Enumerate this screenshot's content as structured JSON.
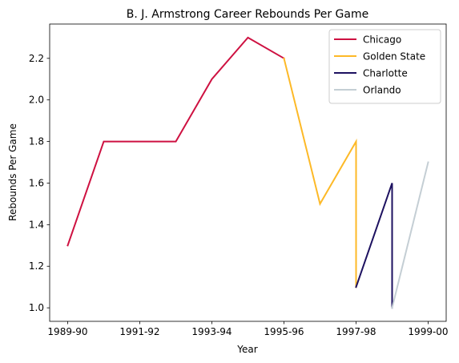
{
  "chart_data": {
    "type": "line",
    "title": "B. J. Armstrong Career Rebounds Per Game",
    "xlabel": "Year",
    "ylabel": "Rebounds Per Game",
    "x_categories": [
      "1989-90",
      "1990-91",
      "1991-92",
      "1992-93",
      "1993-94",
      "1994-95",
      "1995-96",
      "1996-97",
      "1997-98",
      "1998-99",
      "1999-00"
    ],
    "x_tick_labels": [
      "1989-90",
      "1991-92",
      "1993-94",
      "1995-96",
      "1997-98",
      "1999-00"
    ],
    "y_ticks": [
      1.0,
      1.2,
      1.4,
      1.6,
      1.8,
      2.0,
      2.2
    ],
    "y_tick_labels": [
      "1.0",
      "1.2",
      "1.4",
      "1.6",
      "1.8",
      "2.0",
      "2.2"
    ],
    "ylim": [
      0.935,
      2.365
    ],
    "grid": false,
    "legend_position": "top-right",
    "series": [
      {
        "name": "Chicago",
        "color": "#CE1141",
        "points": [
          {
            "x": "1989-90",
            "y": 1.3
          },
          {
            "x": "1990-91",
            "y": 1.8
          },
          {
            "x": "1991-92",
            "y": 1.8
          },
          {
            "x": "1992-93",
            "y": 1.8
          },
          {
            "x": "1993-94",
            "y": 2.1
          },
          {
            "x": "1994-95",
            "y": 2.3
          },
          {
            "x": "1995-96",
            "y": 2.2
          }
        ]
      },
      {
        "name": "Golden State",
        "color": "#FDB927",
        "points": [
          {
            "x": "1995-96",
            "y": 2.2
          },
          {
            "x": "1996-97",
            "y": 1.5
          },
          {
            "x": "1997-98",
            "y": 1.8
          },
          {
            "x": "1997-98",
            "y": 1.1
          }
        ]
      },
      {
        "name": "Charlotte",
        "color": "#1D1160",
        "points": [
          {
            "x": "1997-98",
            "y": 1.1
          },
          {
            "x": "1998-99",
            "y": 1.6
          },
          {
            "x": "1998-99",
            "y": 1.0
          }
        ]
      },
      {
        "name": "Orlando",
        "color": "#C4CED4",
        "points": [
          {
            "x": "1998-99",
            "y": 1.0
          },
          {
            "x": "1999-00",
            "y": 1.7
          }
        ]
      }
    ]
  }
}
